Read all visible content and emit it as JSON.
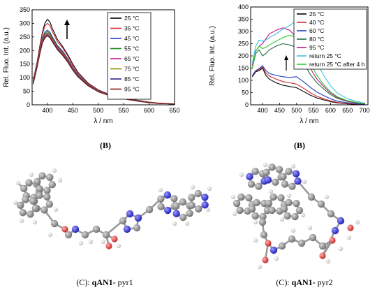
{
  "captions": {
    "left_panel": "(B)",
    "right_panel": "(B)",
    "left_molecule_prefix": "(C): ",
    "left_molecule_name": "qAN1-",
    "left_molecule_suffix": " pyr1",
    "right_molecule_prefix": "(C): ",
    "right_molecule_name": "qAN1-",
    "right_molecule_suffix": " pyr2"
  },
  "molecules": [
    {
      "name": "qAN1- pyr1",
      "atom_colors": {
        "carbon": "#8a8a8a",
        "nitrogen": "#2a2ae0",
        "oxygen": "#e03030",
        "hydrogen": "#e8e8e8"
      }
    },
    {
      "name": "qAN1- pyr2",
      "atom_colors": {
        "carbon": "#8a8a8a",
        "nitrogen": "#2a2ae0",
        "oxygen": "#e03030",
        "hydrogen": "#e8e8e8"
      }
    }
  ],
  "chart_data": [
    {
      "type": "line",
      "title": "",
      "xlabel": "λ / nm",
      "ylabel": "Rel. Fluo. Int. (a.u.)",
      "xlim": [
        370,
        650
      ],
      "ylim": [
        0,
        350
      ],
      "xticks": [
        400,
        450,
        500,
        550,
        600,
        650
      ],
      "yticks": [
        0,
        50,
        100,
        150,
        200,
        250,
        300,
        350
      ],
      "legend_position": "top-right",
      "annotation": "arrow pointing up",
      "x": [
        372,
        380,
        385,
        390,
        395,
        400,
        405,
        410,
        420,
        430,
        440,
        450,
        460,
        480,
        500,
        520,
        540,
        560,
        580,
        600,
        620,
        650
      ],
      "series": [
        {
          "name": "25 °C",
          "color": "#000000",
          "values": [
            90,
            160,
            215,
            265,
            300,
            315,
            305,
            280,
            240,
            215,
            185,
            150,
            120,
            80,
            55,
            40,
            30,
            22,
            16,
            10,
            6,
            3
          ]
        },
        {
          "name": "35 °C",
          "color": "#d62728",
          "values": [
            88,
            158,
            210,
            258,
            290,
            300,
            292,
            270,
            232,
            210,
            180,
            145,
            117,
            78,
            54,
            39,
            29,
            21,
            15,
            10,
            6,
            3
          ]
        },
        {
          "name": "45 °C",
          "color": "#1f3fbf",
          "values": [
            85,
            152,
            200,
            245,
            268,
            275,
            268,
            250,
            218,
            198,
            170,
            138,
            112,
            75,
            52,
            38,
            28,
            20,
            15,
            9,
            5,
            3
          ]
        },
        {
          "name": "55 °C",
          "color": "#1a8a1a",
          "values": [
            84,
            150,
            198,
            242,
            263,
            270,
            263,
            246,
            215,
            195,
            168,
            136,
            110,
            74,
            51,
            37,
            28,
            20,
            14,
            9,
            5,
            3
          ]
        },
        {
          "name": "65 °C",
          "color": "#c2188e",
          "values": [
            82,
            148,
            195,
            238,
            258,
            265,
            258,
            242,
            212,
            192,
            165,
            134,
            108,
            73,
            50,
            37,
            27,
            20,
            14,
            9,
            5,
            3
          ]
        },
        {
          "name": "75 °C",
          "color": "#8a8a00",
          "values": [
            80,
            145,
            192,
            234,
            254,
            262,
            255,
            238,
            208,
            188,
            162,
            131,
            106,
            72,
            49,
            36,
            27,
            19,
            14,
            9,
            5,
            3
          ]
        },
        {
          "name": "85 °C",
          "color": "#3a1a8a",
          "values": [
            78,
            142,
            188,
            230,
            250,
            258,
            250,
            234,
            205,
            185,
            160,
            129,
            105,
            71,
            48,
            35,
            26,
            19,
            13,
            8,
            5,
            3
          ]
        },
        {
          "name": "95 °C",
          "color": "#7a1515",
          "values": [
            76,
            140,
            185,
            226,
            246,
            254,
            247,
            231,
            202,
            182,
            157,
            127,
            103,
            70,
            48,
            35,
            26,
            19,
            13,
            8,
            5,
            3
          ]
        }
      ]
    },
    {
      "type": "line",
      "title": "",
      "xlabel": "λ / nm",
      "ylabel": "Rel. Fluo. Int. (a.u.)",
      "xlim": [
        365,
        710
      ],
      "ylim": [
        0,
        400
      ],
      "xticks": [
        400,
        450,
        500,
        550,
        600,
        650,
        700
      ],
      "yticks": [
        0,
        50,
        100,
        150,
        200,
        250,
        300,
        350,
        400
      ],
      "legend_position": "top-right",
      "annotation": "arrow pointing up",
      "x": [
        370,
        380,
        390,
        400,
        410,
        420,
        440,
        460,
        480,
        500,
        520,
        540,
        560,
        580,
        600,
        620,
        650,
        680,
        700
      ],
      "series": [
        {
          "name": "25 °C",
          "color": "#000000",
          "values": [
            115,
            135,
            140,
            150,
            120,
            105,
            90,
            80,
            75,
            70,
            55,
            40,
            28,
            20,
            13,
            8,
            4,
            2,
            1
          ]
        },
        {
          "name": "40 °C",
          "color": "#d62728",
          "values": [
            118,
            138,
            145,
            155,
            130,
            118,
            105,
            95,
            90,
            85,
            68,
            50,
            35,
            25,
            16,
            10,
            5,
            3,
            2
          ]
        },
        {
          "name": "60 °C",
          "color": "#1f3fbf",
          "values": [
            120,
            140,
            148,
            160,
            140,
            128,
            120,
            115,
            112,
            115,
            95,
            72,
            52,
            38,
            25,
            15,
            8,
            4,
            2
          ]
        },
        {
          "name": "80 °C",
          "color": "#1f6f3f",
          "values": [
            150,
            210,
            225,
            200,
            210,
            225,
            240,
            250,
            245,
            235,
            175,
            125,
            90,
            65,
            42,
            26,
            13,
            7,
            4
          ]
        },
        {
          "name": "95 °C",
          "color": "#c2188e",
          "values": [
            160,
            220,
            240,
            250,
            270,
            290,
            305,
            315,
            305,
            275,
            205,
            150,
            105,
            75,
            48,
            30,
            15,
            8,
            4
          ]
        },
        {
          "name": "return 25 °C",
          "color": "#3fbfe0",
          "values": [
            170,
            240,
            265,
            260,
            265,
            275,
            290,
            310,
            325,
            345,
            310,
            240,
            170,
            120,
            78,
            48,
            25,
            13,
            7
          ]
        },
        {
          "name": "return 25 °C after 4 h",
          "color": "#2ecc2e",
          "values": [
            150,
            220,
            240,
            230,
            235,
            245,
            260,
            275,
            285,
            275,
            230,
            170,
            120,
            82,
            53,
            33,
            17,
            9,
            5
          ]
        }
      ]
    }
  ]
}
